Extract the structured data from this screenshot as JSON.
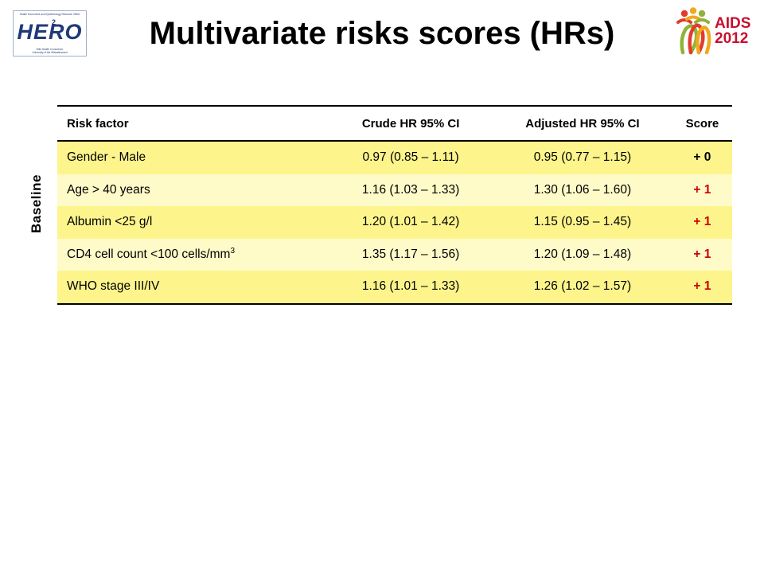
{
  "logos": {
    "hero": {
      "top_text": "Health Economics and Epidemiology Research Office",
      "word": "HERO",
      "superscript": "2",
      "bottom_text_1": "Wits Health Consortium",
      "bottom_text_2": "University of the Witwatersrand"
    },
    "aids": {
      "line1": "AIDS",
      "line2": "2012"
    }
  },
  "slide": {
    "title": "Multivariate risks scores (HRs)",
    "side_label": "Baseline"
  },
  "table": {
    "headers": {
      "risk": "Risk factor",
      "crude": "Crude HR 95% CI",
      "adjusted": "Adjusted HR 95% CI",
      "score": "Score"
    },
    "rows": [
      {
        "risk": "Gender - Male",
        "risk_sup": "",
        "crude": "0.97 (0.85 – 1.11)",
        "adjusted": "0.95 (0.77 – 1.15)",
        "score": "+ 0"
      },
      {
        "risk": "Age > 40 years",
        "risk_sup": "",
        "crude": "1.16 (1.03 – 1.33)",
        "adjusted": "1.30 (1.06 – 1.60)",
        "score": "+ 1"
      },
      {
        "risk": "Albumin <25 g/l",
        "risk_sup": "",
        "crude": "1.20 (1.01 – 1.42)",
        "adjusted": "1.15 (0.95 – 1.45)",
        "score": "+ 1"
      },
      {
        "risk": "CD4 cell count <100 cells/mm",
        "risk_sup": "3",
        "crude": "1.35 (1.17 – 1.56)",
        "adjusted": "1.20 (1.09 – 1.48)",
        "score": "+ 1"
      },
      {
        "risk": "WHO stage III/IV",
        "risk_sup": "",
        "crude": "1.16 (1.01 – 1.33)",
        "adjusted": "1.26 (1.02 – 1.57)",
        "score": "+ 1"
      }
    ]
  },
  "colors": {
    "row_highlight": "#fdf58c",
    "row_light": "#fefbc9",
    "score_positive": "#cc0000",
    "hero_blue": "#1f3a78",
    "aids_red": "#c8102e"
  }
}
